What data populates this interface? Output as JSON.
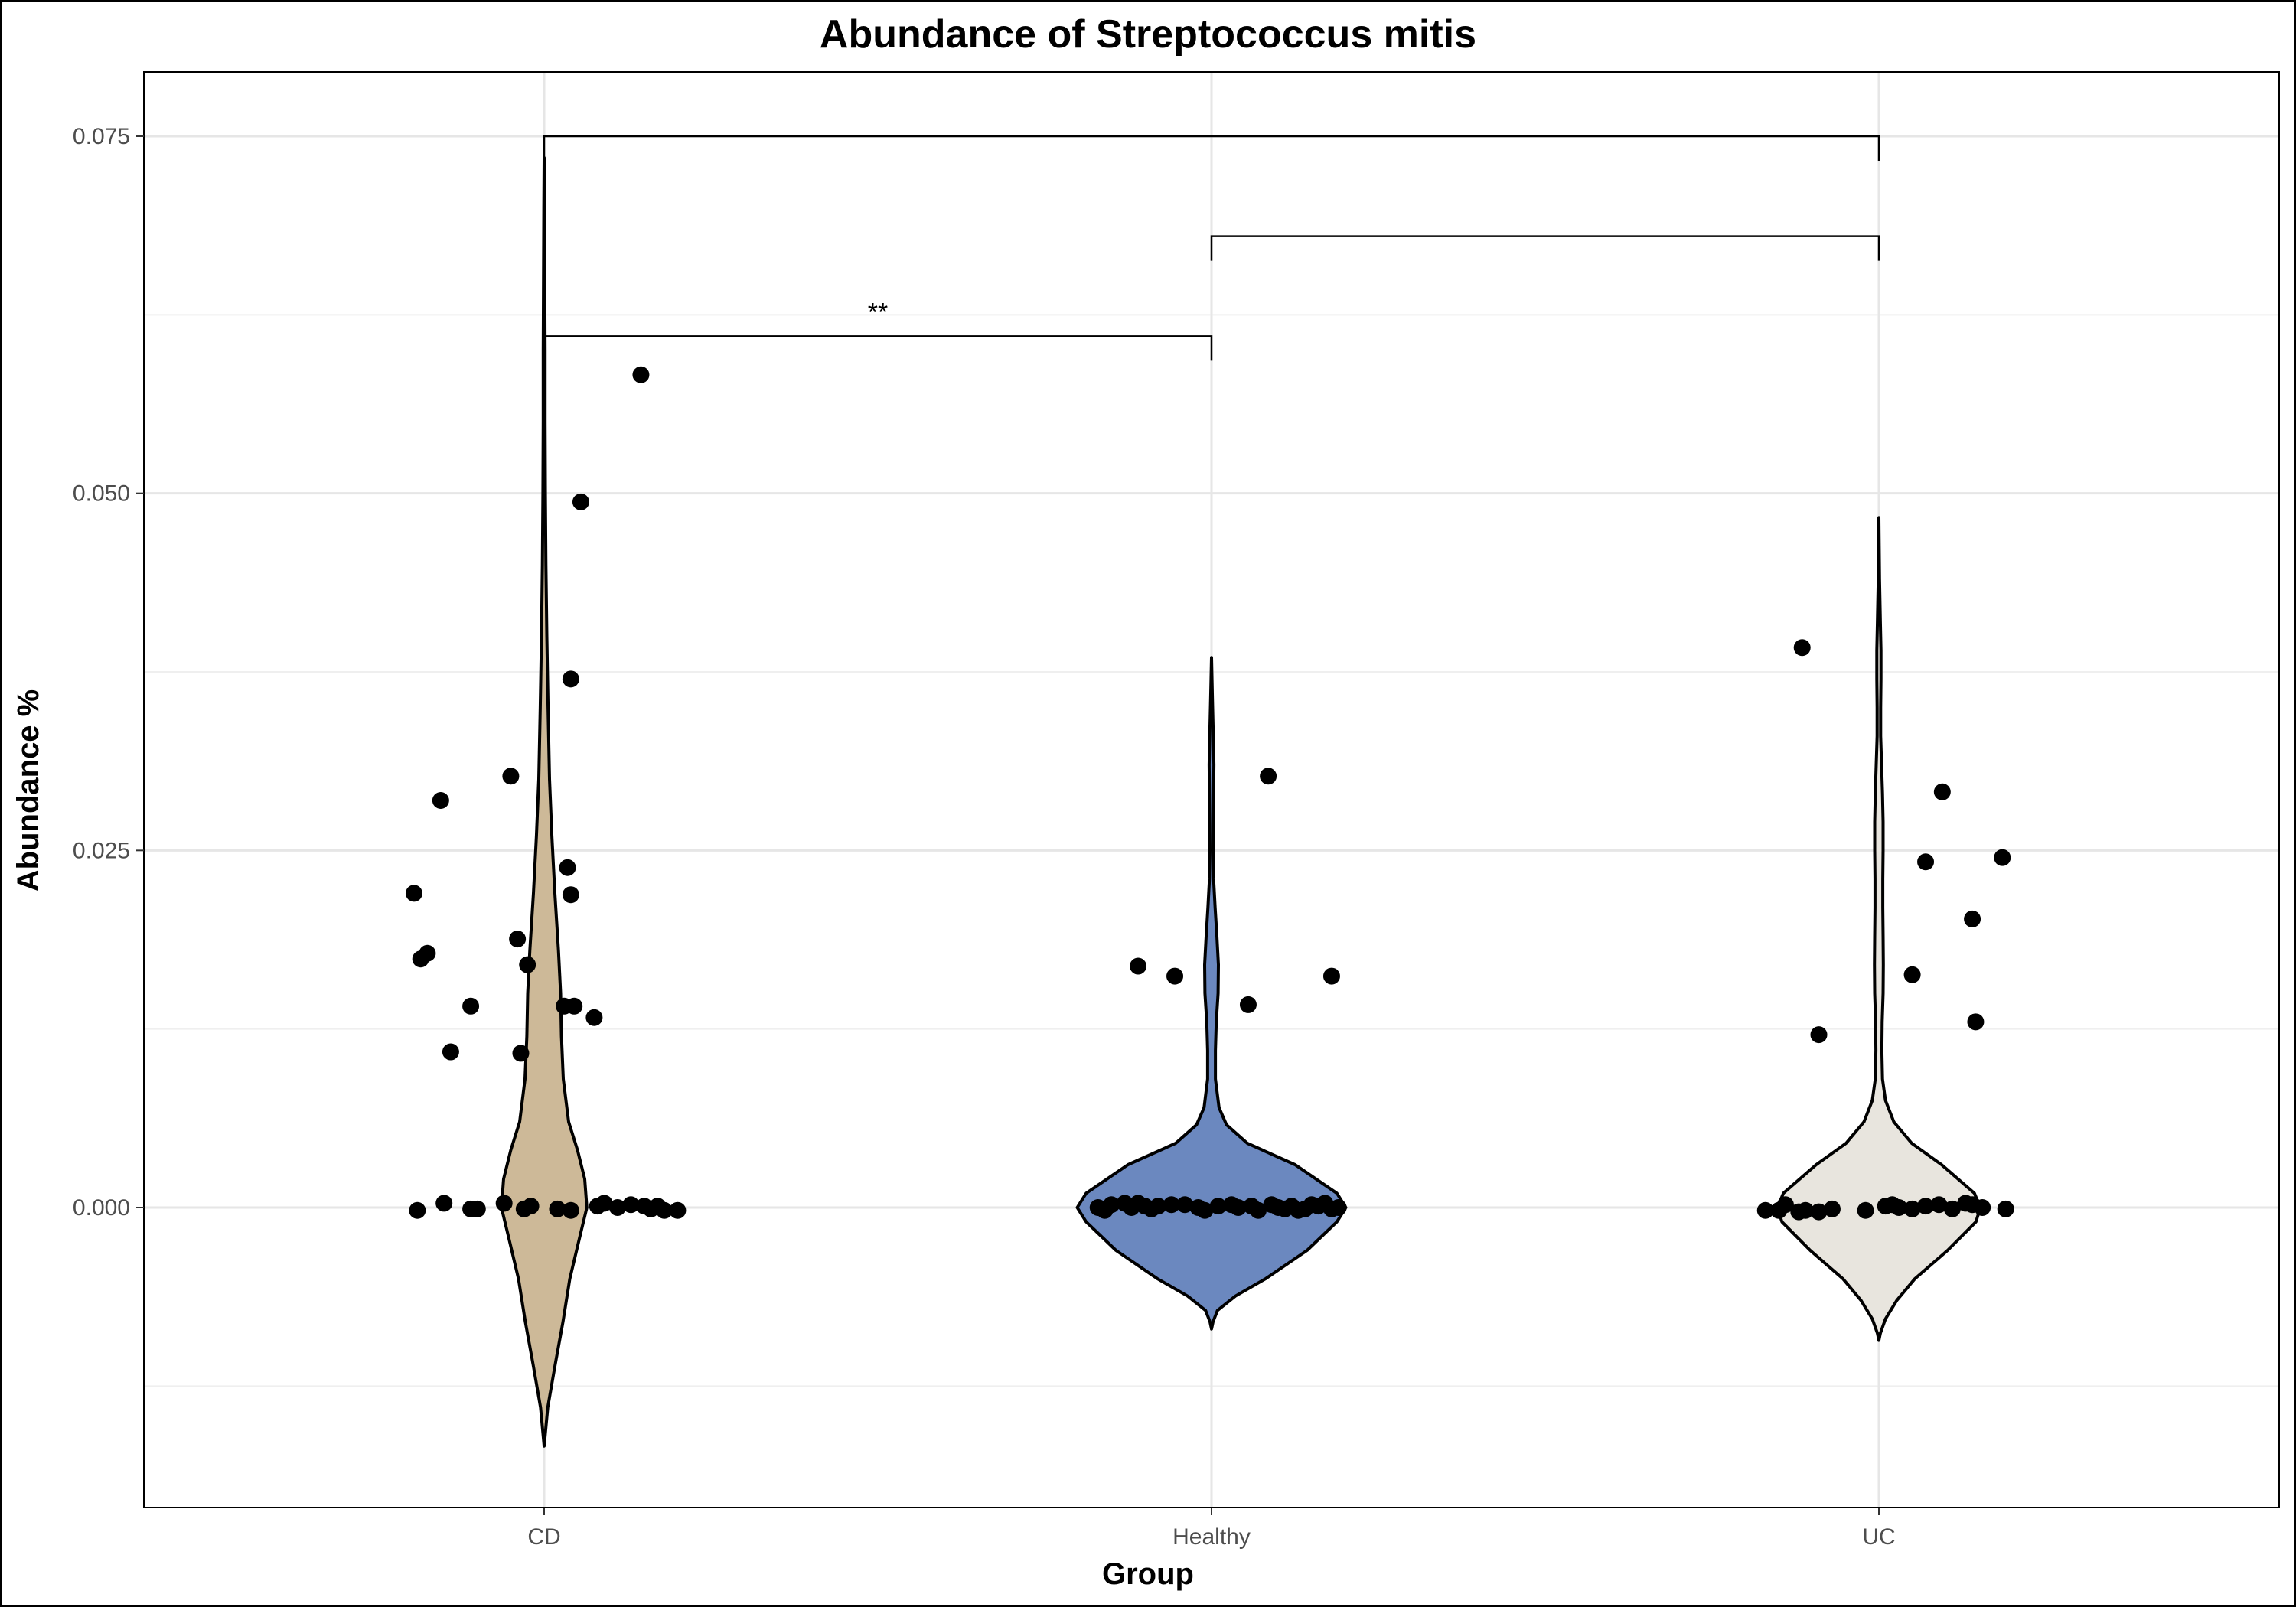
{
  "chart_data": {
    "type": "violin",
    "title": "Abundance of Streptococcus mitis",
    "xlabel": "Group",
    "ylabel": "Abundance %",
    "categories": [
      "CD",
      "Healthy",
      "UC"
    ],
    "colors": {
      "CD": "#cdb998",
      "Healthy": "#6b88bf",
      "UC": "#e8e5de"
    },
    "ylim": [
      -0.021,
      0.0795
    ],
    "yticks": [
      0.0,
      0.025,
      0.05,
      0.075
    ],
    "ytick_labels": [
      "0.000",
      "0.025",
      "0.050",
      "0.075"
    ],
    "grid": true,
    "points": {
      "CD": [
        {
          "x": -0.19,
          "y": -0.0002
        },
        {
          "x": -0.15,
          "y": 0.0003
        },
        {
          "x": -0.11,
          "y": -0.0001
        },
        {
          "x": -0.1,
          "y": -0.0001
        },
        {
          "x": -0.06,
          "y": 0.0003
        },
        {
          "x": -0.03,
          "y": -0.0001
        },
        {
          "x": -0.02,
          "y": 0.0001
        },
        {
          "x": 0.02,
          "y": -0.0001
        },
        {
          "x": 0.04,
          "y": -0.0002
        },
        {
          "x": 0.08,
          "y": 0.0001
        },
        {
          "x": 0.09,
          "y": 0.0003
        },
        {
          "x": 0.11,
          "y": 0.0
        },
        {
          "x": 0.13,
          "y": 0.0002
        },
        {
          "x": 0.15,
          "y": 0.0001
        },
        {
          "x": 0.16,
          "y": -0.0001
        },
        {
          "x": 0.17,
          "y": 0.0001
        },
        {
          "x": 0.18,
          "y": -0.0002
        },
        {
          "x": 0.2,
          "y": -0.0002
        },
        {
          "x": 0.145,
          "y": 0.0583
        },
        {
          "x": 0.055,
          "y": 0.0494
        },
        {
          "x": 0.04,
          "y": 0.037
        },
        {
          "x": -0.05,
          "y": 0.0302
        },
        {
          "x": -0.155,
          "y": 0.0285
        },
        {
          "x": 0.035,
          "y": 0.0238
        },
        {
          "x": -0.195,
          "y": 0.022
        },
        {
          "x": 0.04,
          "y": 0.0219
        },
        {
          "x": -0.04,
          "y": 0.0188
        },
        {
          "x": -0.175,
          "y": 0.0178
        },
        {
          "x": -0.185,
          "y": 0.0174
        },
        {
          "x": -0.025,
          "y": 0.017
        },
        {
          "x": -0.11,
          "y": 0.0141
        },
        {
          "x": 0.03,
          "y": 0.0141
        },
        {
          "x": 0.045,
          "y": 0.0141
        },
        {
          "x": 0.075,
          "y": 0.0133
        },
        {
          "x": -0.14,
          "y": 0.0109
        },
        {
          "x": -0.035,
          "y": 0.0108
        }
      ],
      "Healthy": [
        {
          "x": -0.17,
          "y": 0.0
        },
        {
          "x": -0.16,
          "y": -0.0002
        },
        {
          "x": -0.15,
          "y": 0.0002
        },
        {
          "x": -0.13,
          "y": 0.0003
        },
        {
          "x": -0.12,
          "y": 0.0
        },
        {
          "x": -0.11,
          "y": 0.0003
        },
        {
          "x": -0.1,
          "y": 0.0001
        },
        {
          "x": -0.09,
          "y": -0.0001
        },
        {
          "x": -0.08,
          "y": 0.0001
        },
        {
          "x": -0.06,
          "y": 0.0002
        },
        {
          "x": -0.04,
          "y": 0.0002
        },
        {
          "x": -0.02,
          "y": 0.0
        },
        {
          "x": -0.01,
          "y": -0.0002
        },
        {
          "x": 0.01,
          "y": 0.0001
        },
        {
          "x": 0.03,
          "y": 0.0002
        },
        {
          "x": 0.04,
          "y": 0.0
        },
        {
          "x": 0.06,
          "y": 0.0001
        },
        {
          "x": 0.07,
          "y": -0.0002
        },
        {
          "x": 0.09,
          "y": 0.0002
        },
        {
          "x": 0.1,
          "y": 0.0
        },
        {
          "x": 0.11,
          "y": -0.0001
        },
        {
          "x": 0.12,
          "y": 0.0001
        },
        {
          "x": 0.13,
          "y": -0.0002
        },
        {
          "x": 0.14,
          "y": -0.0001
        },
        {
          "x": 0.15,
          "y": 0.0002
        },
        {
          "x": 0.16,
          "y": 0.0001
        },
        {
          "x": 0.17,
          "y": 0.0003
        },
        {
          "x": 0.18,
          "y": -0.0001
        },
        {
          "x": 0.19,
          "y": 0.0
        },
        {
          "x": 0.085,
          "y": 0.0302
        },
        {
          "x": -0.11,
          "y": 0.0169
        },
        {
          "x": 0.18,
          "y": 0.0162
        },
        {
          "x": -0.055,
          "y": 0.0162
        },
        {
          "x": 0.055,
          "y": 0.0142
        }
      ],
      "UC": [
        {
          "x": -0.17,
          "y": -0.0002
        },
        {
          "x": -0.15,
          "y": -0.0002
        },
        {
          "x": -0.14,
          "y": 0.0002
        },
        {
          "x": -0.12,
          "y": -0.0003
        },
        {
          "x": -0.11,
          "y": -0.0002
        },
        {
          "x": -0.09,
          "y": -0.0003
        },
        {
          "x": -0.07,
          "y": -0.0001
        },
        {
          "x": -0.02,
          "y": -0.0002
        },
        {
          "x": 0.01,
          "y": 0.0001
        },
        {
          "x": 0.02,
          "y": 0.0002
        },
        {
          "x": 0.03,
          "y": 0.0
        },
        {
          "x": 0.05,
          "y": -0.0001
        },
        {
          "x": 0.07,
          "y": 0.0001
        },
        {
          "x": 0.09,
          "y": 0.0002
        },
        {
          "x": 0.11,
          "y": -0.0001
        },
        {
          "x": 0.13,
          "y": 0.0003
        },
        {
          "x": 0.14,
          "y": 0.0002
        },
        {
          "x": 0.155,
          "y": 0.0
        },
        {
          "x": 0.19,
          "y": -0.0001
        },
        {
          "x": -0.115,
          "y": 0.0392
        },
        {
          "x": 0.095,
          "y": 0.0291
        },
        {
          "x": 0.185,
          "y": 0.0245
        },
        {
          "x": 0.07,
          "y": 0.0242
        },
        {
          "x": 0.14,
          "y": 0.0202
        },
        {
          "x": 0.05,
          "y": 0.0163
        },
        {
          "x": 0.145,
          "y": 0.013
        },
        {
          "x": -0.09,
          "y": 0.0121
        }
      ]
    },
    "violins": {
      "CD": [
        [
          -0.0167,
          0.0
        ],
        [
          -0.014,
          0.012
        ],
        [
          -0.011,
          0.037
        ],
        [
          -0.008,
          0.063
        ],
        [
          -0.005,
          0.086
        ],
        [
          -0.002,
          0.12
        ],
        [
          0.0,
          0.143
        ],
        [
          0.002,
          0.136
        ],
        [
          0.004,
          0.112
        ],
        [
          0.006,
          0.082
        ],
        [
          0.009,
          0.064
        ],
        [
          0.012,
          0.058
        ],
        [
          0.015,
          0.055
        ],
        [
          0.018,
          0.048
        ],
        [
          0.022,
          0.036
        ],
        [
          0.026,
          0.026
        ],
        [
          0.03,
          0.018
        ],
        [
          0.035,
          0.013
        ],
        [
          0.04,
          0.009
        ],
        [
          0.045,
          0.006
        ],
        [
          0.05,
          0.004
        ],
        [
          0.055,
          0.003
        ],
        [
          0.06,
          0.003
        ],
        [
          0.065,
          0.002
        ],
        [
          0.07,
          0.001
        ],
        [
          0.0735,
          0.0
        ]
      ],
      "Healthy": [
        [
          -0.0085,
          0.0
        ],
        [
          -0.008,
          0.005
        ],
        [
          -0.0072,
          0.02
        ],
        [
          -0.0062,
          0.08
        ],
        [
          -0.005,
          0.18
        ],
        [
          -0.003,
          0.32
        ],
        [
          -0.001,
          0.42
        ],
        [
          0.0,
          0.45
        ],
        [
          0.001,
          0.42
        ],
        [
          0.003,
          0.28
        ],
        [
          0.0045,
          0.12
        ],
        [
          0.0058,
          0.05
        ],
        [
          0.007,
          0.025
        ],
        [
          0.009,
          0.013
        ],
        [
          0.011,
          0.013
        ],
        [
          0.013,
          0.016
        ],
        [
          0.015,
          0.022
        ],
        [
          0.017,
          0.023
        ],
        [
          0.019,
          0.018
        ],
        [
          0.021,
          0.012
        ],
        [
          0.023,
          0.007
        ],
        [
          0.025,
          0.005
        ],
        [
          0.027,
          0.006
        ],
        [
          0.029,
          0.007
        ],
        [
          0.031,
          0.008
        ],
        [
          0.033,
          0.006
        ],
        [
          0.0355,
          0.003
        ],
        [
          0.0385,
          0.0
        ]
      ],
      "UC": [
        [
          -0.0093,
          0.0
        ],
        [
          -0.0088,
          0.005
        ],
        [
          -0.0078,
          0.022
        ],
        [
          -0.0065,
          0.06
        ],
        [
          -0.005,
          0.12
        ],
        [
          -0.003,
          0.23
        ],
        [
          -0.001,
          0.325
        ],
        [
          0.0,
          0.34
        ],
        [
          0.001,
          0.32
        ],
        [
          0.003,
          0.21
        ],
        [
          0.0045,
          0.11
        ],
        [
          0.006,
          0.05
        ],
        [
          0.0075,
          0.022
        ],
        [
          0.009,
          0.012
        ],
        [
          0.011,
          0.01
        ],
        [
          0.013,
          0.011
        ],
        [
          0.015,
          0.014
        ],
        [
          0.017,
          0.015
        ],
        [
          0.019,
          0.014
        ],
        [
          0.021,
          0.013
        ],
        [
          0.023,
          0.013
        ],
        [
          0.025,
          0.014
        ],
        [
          0.027,
          0.014
        ],
        [
          0.029,
          0.012
        ],
        [
          0.031,
          0.009
        ],
        [
          0.033,
          0.006
        ],
        [
          0.035,
          0.006
        ],
        [
          0.037,
          0.007
        ],
        [
          0.039,
          0.007
        ],
        [
          0.041,
          0.005
        ],
        [
          0.044,
          0.002
        ],
        [
          0.0483,
          0.0
        ]
      ]
    },
    "comparisons": [
      {
        "groups": [
          "CD",
          "Healthy"
        ],
        "y": 0.061,
        "label": "**"
      },
      {
        "groups": [
          "Healthy",
          "UC"
        ],
        "y": 0.068,
        "label": ""
      },
      {
        "groups": [
          "CD",
          "UC"
        ],
        "y": 0.075,
        "label": ""
      }
    ]
  }
}
